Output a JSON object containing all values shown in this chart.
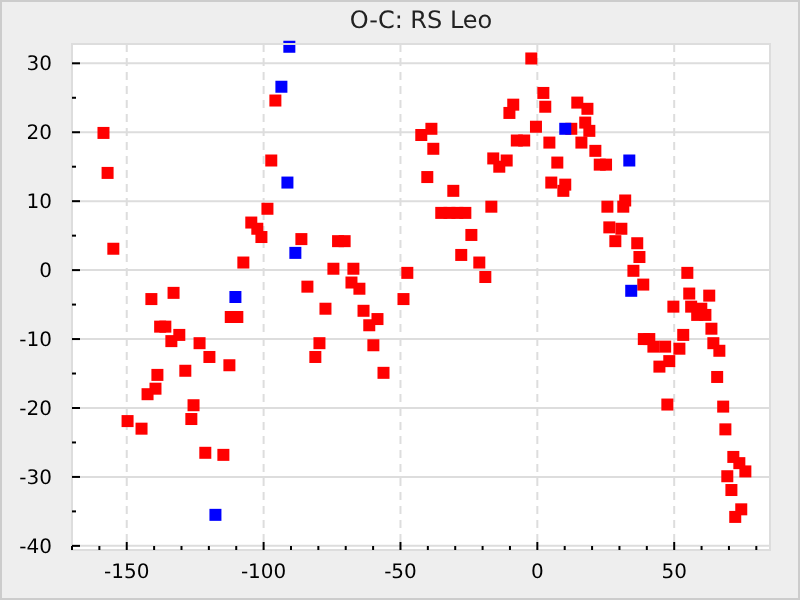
{
  "chart_data": {
    "type": "scatter",
    "title": "O-C: RS Leo",
    "marker": "square",
    "grid": true,
    "xlim": [
      -170,
      85
    ],
    "ylim": [
      -40.6,
      32.8
    ],
    "xticks": [
      {
        "value": -170,
        "label": null
      },
      {
        "value": -160,
        "label": null
      },
      -150,
      {
        "value": -140,
        "label": null
      },
      {
        "value": -130,
        "label": null
      },
      {
        "value": -120,
        "label": null
      },
      {
        "value": -110,
        "label": null
      },
      -100,
      {
        "value": -90,
        "label": null
      },
      {
        "value": -80,
        "label": null
      },
      {
        "value": -70,
        "label": null
      },
      {
        "value": -60,
        "label": null
      },
      -50,
      {
        "value": -40,
        "label": null
      },
      {
        "value": -30,
        "label": null
      },
      {
        "value": -20,
        "label": null
      },
      {
        "value": -10,
        "label": null
      },
      0,
      {
        "value": 10,
        "label": null
      },
      {
        "value": 20,
        "label": null
      },
      {
        "value": 30,
        "label": null
      },
      {
        "value": 40,
        "label": null
      },
      50,
      {
        "value": 60,
        "label": null
      },
      {
        "value": 70,
        "label": null
      },
      {
        "value": 80,
        "label": null
      }
    ],
    "yticks": [
      -40,
      {
        "value": -35,
        "label": null
      },
      -30,
      {
        "value": -25,
        "label": null
      },
      -20,
      {
        "value": -15,
        "label": null
      },
      -10,
      {
        "value": -5,
        "label": null
      },
      0,
      {
        "value": 5,
        "label": null
      },
      10,
      {
        "value": 15,
        "label": null
      },
      20,
      {
        "value": 25,
        "label": null
      },
      30
    ],
    "series": [
      {
        "color": "#ff0000",
        "x": [
          -95.7,
          -158.5,
          -97.2,
          -157.0,
          -98.6,
          -104.5,
          -102.3,
          -100.8,
          -86.2,
          -154.9,
          -107.4,
          -84.0,
          -141.0,
          -132.9,
          -112.0,
          -109.6,
          -137.8,
          -135.9,
          -130.8,
          -133.7,
          -123.4,
          -119.8,
          -112.5,
          -138.8,
          -128.6,
          -139.5,
          -142.4,
          -125.6,
          -126.4,
          -149.7,
          -144.6,
          -121.3,
          -114.7,
          -2.2,
          -8.8,
          -10.2,
          -0.5,
          -38.7,
          -42.4,
          -38.0,
          -7.5,
          -4.8,
          -16.1,
          -11.2,
          -13.9,
          -40.2,
          -30.7,
          -16.8,
          -35.1,
          -32.1,
          -29.2,
          -26.3,
          -72.8,
          -70.4,
          -24.1,
          -27.8,
          -21.2,
          -19.0,
          -74.5,
          -67.2,
          -47.5,
          -67.9,
          -65.0,
          -48.9,
          -77.4,
          -63.5,
          -58.4,
          -61.4,
          -79.6,
          -59.9,
          -81.1,
          -56.2,
          2.2,
          2.9,
          14.6,
          18.3,
          12.4,
          17.5,
          19.0,
          4.4,
          16.1,
          21.2,
          22.8,
          25.1,
          7.3,
          5.1,
          10.2,
          9.5,
          25.6,
          31.4,
          32.1,
          26.3,
          30.7,
          28.5,
          36.5,
          37.3,
          35.1,
          38.7,
          54.8,
          55.5,
          62.8,
          49.7,
          56.2,
          58.4,
          61.4,
          59.9,
          63.6,
          53.3,
          64.3,
          38.9,
          40.9,
          42.4,
          46.7,
          51.9,
          66.5,
          48.2,
          44.6,
          65.7,
          47.5,
          67.9,
          68.7,
          71.6,
          73.8,
          76.0,
          69.4,
          70.9,
          74.5,
          72.3
        ],
        "values": [
          24.6,
          19.9,
          15.9,
          14.1,
          8.9,
          6.9,
          6.0,
          4.8,
          4.5,
          3.1,
          1.1,
          -2.4,
          -4.2,
          -3.3,
          -6.8,
          -6.8,
          -8.2,
          -8.2,
          -9.4,
          -10.3,
          -10.6,
          -12.6,
          -13.8,
          -15.2,
          -14.6,
          -17.2,
          -18.0,
          -19.6,
          -21.6,
          -21.9,
          -23.0,
          -26.5,
          -26.8,
          30.7,
          24.0,
          22.8,
          20.8,
          20.5,
          19.6,
          17.6,
          18.8,
          18.8,
          16.2,
          15.9,
          15.0,
          13.5,
          11.5,
          9.2,
          8.3,
          8.3,
          8.3,
          8.3,
          4.2,
          4.2,
          5.1,
          2.2,
          1.1,
          -1.0,
          0.2,
          0.2,
          -0.4,
          -1.8,
          -2.7,
          -4.2,
          -5.6,
          -5.9,
          -7.1,
          -8.0,
          -10.6,
          -10.9,
          -12.6,
          -14.9,
          25.7,
          23.7,
          24.3,
          23.4,
          20.5,
          21.4,
          20.2,
          18.5,
          18.5,
          17.3,
          15.3,
          15.3,
          15.6,
          12.7,
          12.4,
          11.5,
          9.2,
          9.2,
          10.1,
          6.2,
          6.0,
          4.2,
          3.9,
          1.9,
          -0.1,
          -2.1,
          -0.4,
          -3.4,
          -3.7,
          -5.3,
          -5.3,
          -6.5,
          -6.5,
          -5.6,
          -8.5,
          -9.4,
          -10.6,
          -10.0,
          -10.0,
          -11.1,
          -11.1,
          -11.4,
          -11.7,
          -13.2,
          -14.0,
          -15.5,
          -19.5,
          -19.8,
          -23.1,
          -27.1,
          -28.0,
          -29.2,
          -29.9,
          -31.9,
          -34.7,
          -35.8
        ]
      },
      {
        "color": "#0000ff",
        "x": [
          -90.6,
          -93.5,
          -91.3,
          -88.4,
          -110.3,
          -117.6,
          10.2,
          33.6,
          34.3
        ],
        "values": [
          32.4,
          26.6,
          12.7,
          2.5,
          -3.9,
          -35.5,
          20.5,
          15.9,
          -3.0
        ]
      }
    ]
  }
}
